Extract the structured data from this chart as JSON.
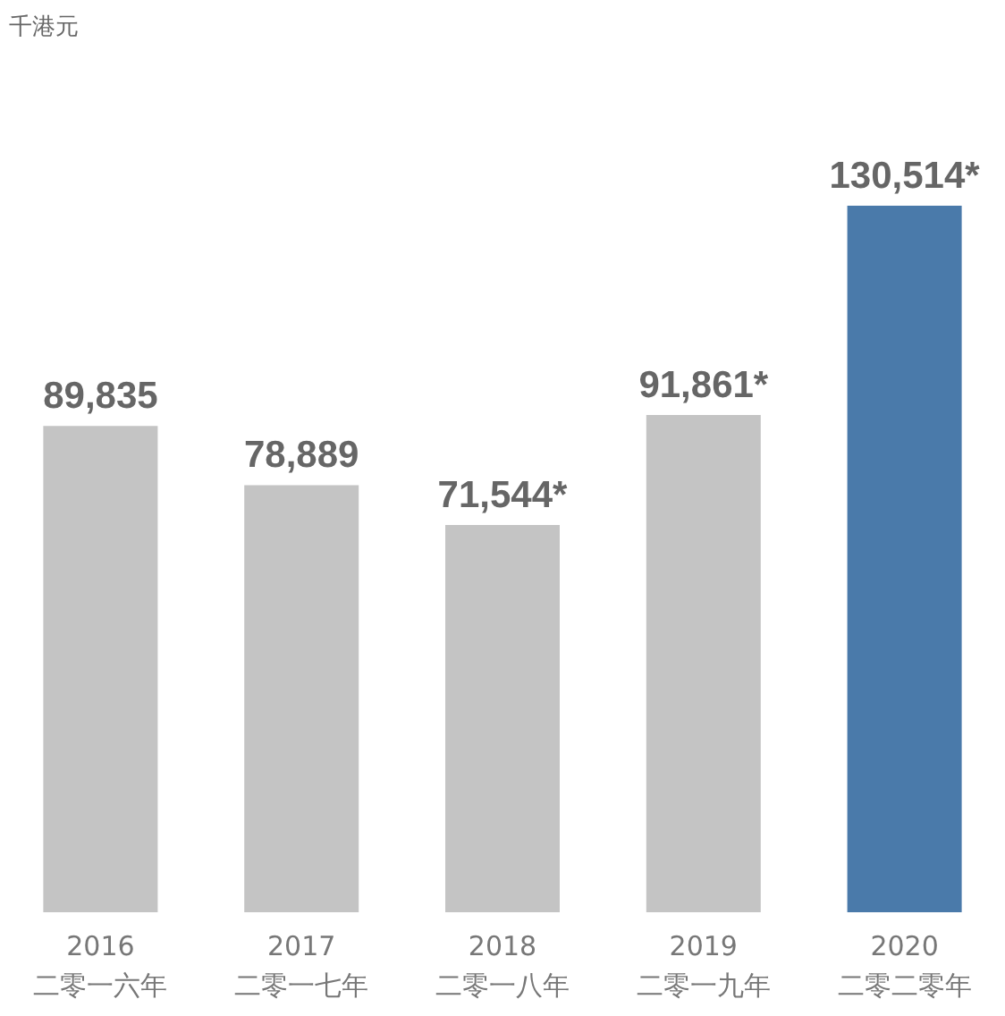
{
  "chart_data": {
    "type": "bar",
    "annotations": [
      "千港元"
    ],
    "categories": [
      "2016\n二零一六年",
      "2017\n二零一七年",
      "2018\n二零一八年",
      "2019\n二零一九年",
      "2020\n二零二零年"
    ],
    "values": [
      89835,
      78889,
      71544,
      91861,
      130514
    ],
    "value_labels": [
      "89,835",
      "78,889",
      "71,544*",
      "91,861*",
      "130,514*"
    ],
    "colors": [
      "#c4c4c4",
      "#c4c4c4",
      "#c4c4c4",
      "#c4c4c4",
      "#4a7aaa"
    ]
  }
}
